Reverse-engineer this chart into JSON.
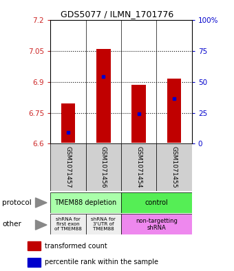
{
  "title": "GDS5077 / ILMN_1701776",
  "samples": [
    "GSM1071457",
    "GSM1071456",
    "GSM1071454",
    "GSM1071455"
  ],
  "bar_bottoms": [
    6.605,
    6.605,
    6.605,
    6.605
  ],
  "bar_tops": [
    6.795,
    7.06,
    6.885,
    6.915
  ],
  "percentile_values": [
    6.655,
    6.925,
    6.745,
    6.82
  ],
  "ylim_left": [
    6.6,
    7.2
  ],
  "yticks_left": [
    6.6,
    6.75,
    6.9,
    7.05,
    7.2
  ],
  "ytick_labels_left": [
    "6.6",
    "6.75",
    "6.9",
    "7.05",
    "7.2"
  ],
  "ylim_right": [
    0,
    100
  ],
  "yticks_right": [
    0,
    25,
    50,
    75,
    100
  ],
  "ytick_labels_right": [
    "0",
    "25",
    "50",
    "75",
    "100%"
  ],
  "bar_color": "#c00000",
  "percentile_color": "#0000cc",
  "protocol_labels": [
    "TMEM88 depletion",
    "control"
  ],
  "protocol_color_left": "#aaffaa",
  "protocol_color_right": "#55ee55",
  "other_labels": [
    "shRNA for\nfirst exon\nof TMEM88",
    "shRNA for\n3'UTR of\nTMEM88",
    "non-targetting\nshRNA"
  ],
  "other_color_grey": "#eeeeee",
  "other_color_pink": "#ee88ee",
  "legend_red_label": "transformed count",
  "legend_blue_label": "percentile rank within the sample",
  "protocol_row_label": "protocol",
  "other_row_label": "other",
  "bar_width": 0.4,
  "x_positions": [
    0.5,
    1.5,
    2.5,
    3.5
  ],
  "grid_lines": [
    6.75,
    6.9,
    7.05
  ],
  "separator_lines": [
    1.0,
    2.0,
    3.0
  ]
}
